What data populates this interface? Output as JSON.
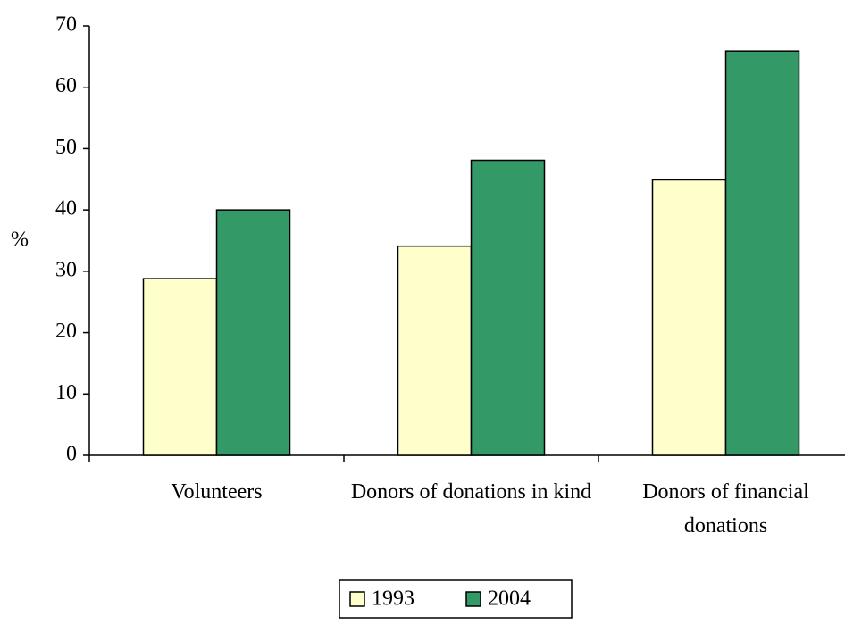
{
  "chart_data": {
    "type": "bar",
    "y_label": "%",
    "categories": [
      "Volunteers",
      "Donors of donations in kind",
      "Donors of financial donations"
    ],
    "series": [
      {
        "name": "1993",
        "color": "#ffffcc",
        "values": [
          28.8,
          34.1,
          44.9
        ]
      },
      {
        "name": "2004",
        "color": "#339966",
        "values": [
          40,
          48.1,
          65.9
        ]
      }
    ],
    "ylim": [
      0,
      70
    ],
    "yticks": [
      0,
      10,
      20,
      30,
      40,
      50,
      60,
      70
    ],
    "legend": "bottom"
  }
}
